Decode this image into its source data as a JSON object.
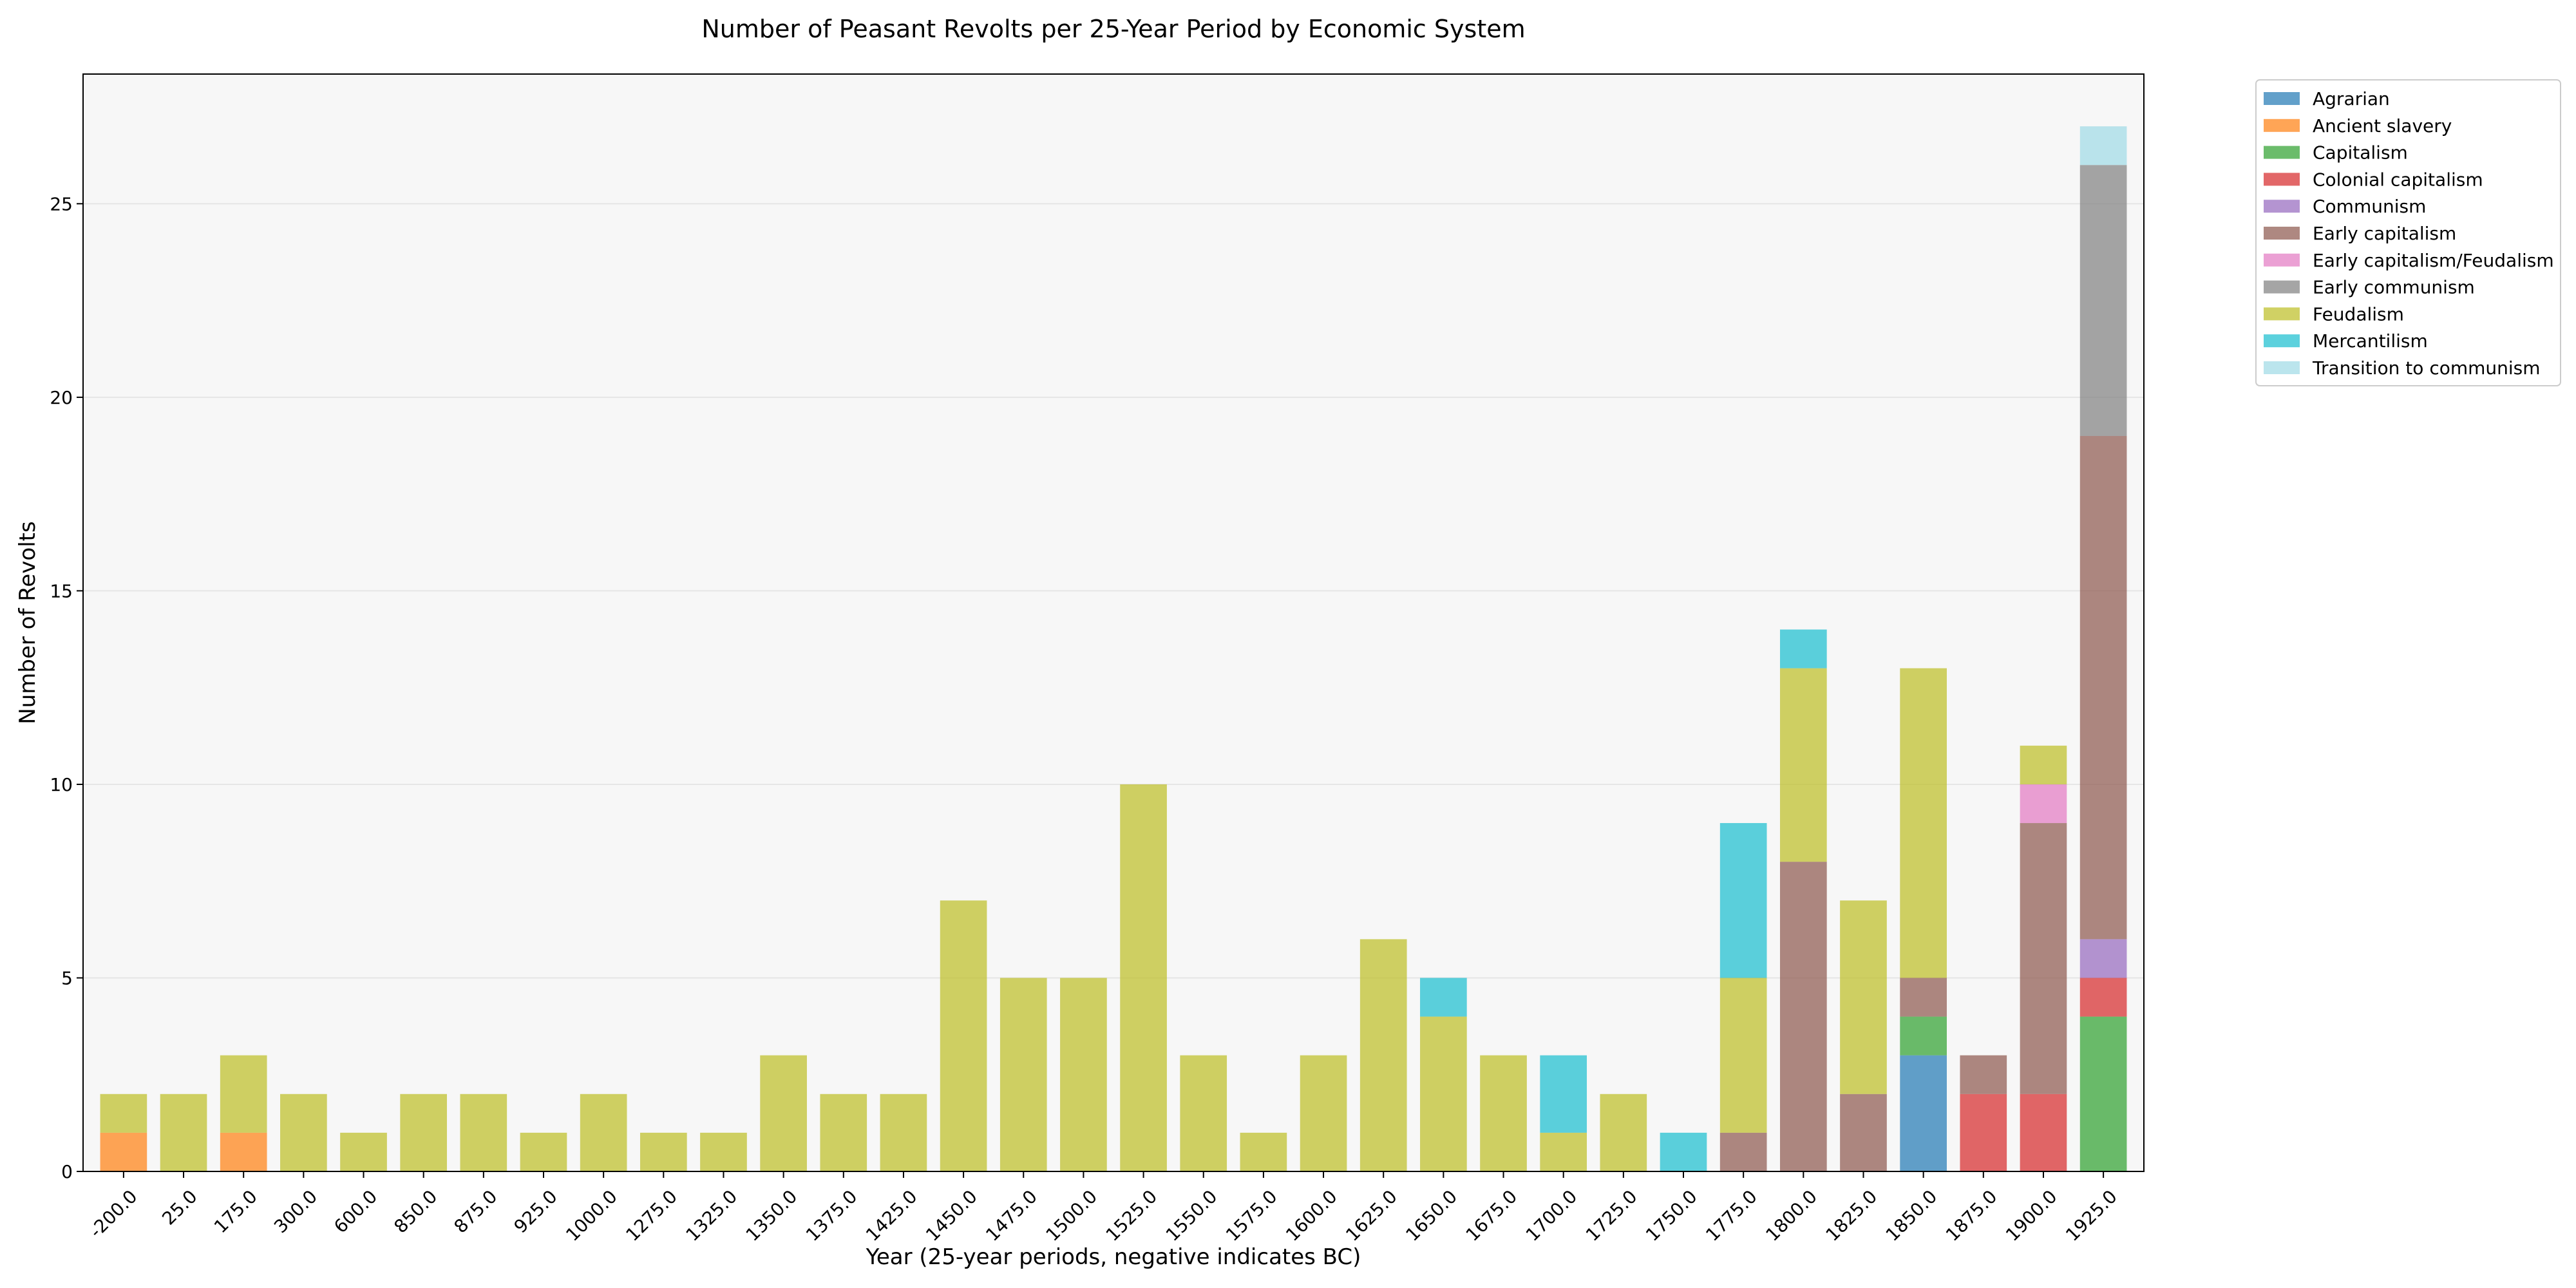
{
  "chart_data": {
    "type": "bar",
    "stacked": true,
    "title": "Number of Peasant Revolts per 25-Year Period by Economic System",
    "xlabel": "Year (25-year periods, negative indicates BC)",
    "ylabel": "Number of Revolts",
    "ylim": [
      0,
      28.35
    ],
    "yticks": [
      0,
      5,
      10,
      15,
      20,
      25
    ],
    "grid": "horizontal",
    "legend_position": "outside-top-right",
    "categories": [
      "-200.0",
      "25.0",
      "175.0",
      "300.0",
      "600.0",
      "850.0",
      "875.0",
      "925.0",
      "1000.0",
      "1275.0",
      "1325.0",
      "1350.0",
      "1375.0",
      "1425.0",
      "1450.0",
      "1475.0",
      "1500.0",
      "1525.0",
      "1550.0",
      "1575.0",
      "1600.0",
      "1625.0",
      "1650.0",
      "1675.0",
      "1700.0",
      "1725.0",
      "1750.0",
      "1775.0",
      "1800.0",
      "1825.0",
      "1850.0",
      "1875.0",
      "1900.0",
      "1925.0"
    ],
    "series": [
      {
        "name": "Agrarian",
        "color": "#1f77b4",
        "values": [
          0,
          0,
          0,
          0,
          0,
          0,
          0,
          0,
          0,
          0,
          0,
          0,
          0,
          0,
          0,
          0,
          0,
          0,
          0,
          0,
          0,
          0,
          0,
          0,
          0,
          0,
          0,
          0,
          0,
          0,
          3,
          0,
          0,
          0
        ]
      },
      {
        "name": "Ancient slavery",
        "color": "#ff7f0e",
        "values": [
          1,
          0,
          1,
          0,
          0,
          0,
          0,
          0,
          0,
          0,
          0,
          0,
          0,
          0,
          0,
          0,
          0,
          0,
          0,
          0,
          0,
          0,
          0,
          0,
          0,
          0,
          0,
          0,
          0,
          0,
          0,
          0,
          0,
          0
        ]
      },
      {
        "name": "Capitalism",
        "color": "#2ca02c",
        "values": [
          0,
          0,
          0,
          0,
          0,
          0,
          0,
          0,
          0,
          0,
          0,
          0,
          0,
          0,
          0,
          0,
          0,
          0,
          0,
          0,
          0,
          0,
          0,
          0,
          0,
          0,
          0,
          0,
          0,
          0,
          1,
          0,
          0,
          4
        ]
      },
      {
        "name": "Colonial capitalism",
        "color": "#d62728",
        "values": [
          0,
          0,
          0,
          0,
          0,
          0,
          0,
          0,
          0,
          0,
          0,
          0,
          0,
          0,
          0,
          0,
          0,
          0,
          0,
          0,
          0,
          0,
          0,
          0,
          0,
          0,
          0,
          0,
          0,
          0,
          0,
          2,
          2,
          1
        ]
      },
      {
        "name": "Communism",
        "color": "#9467bd",
        "values": [
          0,
          0,
          0,
          0,
          0,
          0,
          0,
          0,
          0,
          0,
          0,
          0,
          0,
          0,
          0,
          0,
          0,
          0,
          0,
          0,
          0,
          0,
          0,
          0,
          0,
          0,
          0,
          0,
          0,
          0,
          0,
          0,
          0,
          1
        ]
      },
      {
        "name": "Early capitalism",
        "color": "#8c564b",
        "values": [
          0,
          0,
          0,
          0,
          0,
          0,
          0,
          0,
          0,
          0,
          0,
          0,
          0,
          0,
          0,
          0,
          0,
          0,
          0,
          0,
          0,
          0,
          0,
          0,
          0,
          0,
          0,
          1,
          8,
          2,
          1,
          1,
          7,
          13
        ]
      },
      {
        "name": "Early capitalism/Feudalism",
        "color": "#e377c2",
        "values": [
          0,
          0,
          0,
          0,
          0,
          0,
          0,
          0,
          0,
          0,
          0,
          0,
          0,
          0,
          0,
          0,
          0,
          0,
          0,
          0,
          0,
          0,
          0,
          0,
          0,
          0,
          0,
          0,
          0,
          0,
          0,
          0,
          1,
          0
        ]
      },
      {
        "name": "Early communism",
        "color": "#7f7f7f",
        "values": [
          0,
          0,
          0,
          0,
          0,
          0,
          0,
          0,
          0,
          0,
          0,
          0,
          0,
          0,
          0,
          0,
          0,
          0,
          0,
          0,
          0,
          0,
          0,
          0,
          0,
          0,
          0,
          0,
          0,
          0,
          0,
          0,
          0,
          7
        ]
      },
      {
        "name": "Feudalism",
        "color": "#bcbd22",
        "values": [
          1,
          2,
          2,
          2,
          1,
          2,
          2,
          1,
          2,
          1,
          1,
          3,
          2,
          2,
          7,
          5,
          5,
          10,
          3,
          1,
          3,
          6,
          4,
          3,
          1,
          2,
          0,
          4,
          5,
          5,
          8,
          0,
          1,
          0
        ]
      },
      {
        "name": "Mercantilism",
        "color": "#17becf",
        "values": [
          0,
          0,
          0,
          0,
          0,
          0,
          0,
          0,
          0,
          0,
          0,
          0,
          0,
          0,
          0,
          0,
          0,
          0,
          0,
          0,
          0,
          0,
          1,
          0,
          2,
          0,
          1,
          4,
          1,
          0,
          0,
          0,
          0,
          0
        ]
      },
      {
        "name": "Transition to communism",
        "color": "#9edae5",
        "values": [
          0,
          0,
          0,
          0,
          0,
          0,
          0,
          0,
          0,
          0,
          0,
          0,
          0,
          0,
          0,
          0,
          0,
          0,
          0,
          0,
          0,
          0,
          0,
          0,
          0,
          0,
          0,
          0,
          0,
          0,
          0,
          0,
          0,
          1
        ]
      }
    ]
  }
}
